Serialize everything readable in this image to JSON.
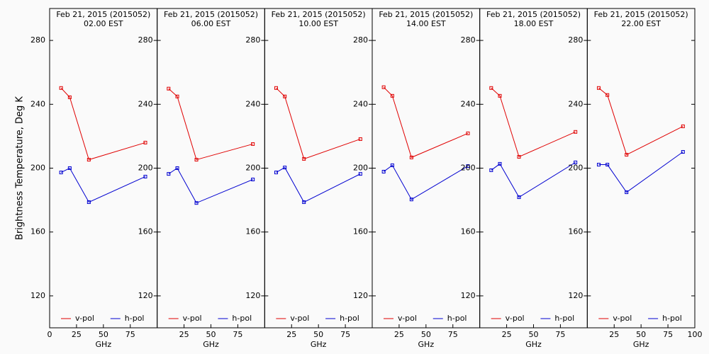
{
  "chart_data": [
    {
      "type": "line",
      "title": "Feb 21, 2015 (2015052)",
      "subtitle": "02.00 EST",
      "ylabel": "Brightness Temperature, Deg K",
      "xlabel": "GHz",
      "x": [
        10.65,
        18.7,
        36.5,
        89.0
      ],
      "xlim": [
        0,
        100
      ],
      "ylim": [
        100,
        300
      ],
      "xticks": [
        0,
        25,
        50,
        75
      ],
      "yticks": [
        120,
        160,
        200,
        240,
        280
      ],
      "series": [
        {
          "name": "v-pol",
          "color": "#e00000",
          "values": [
            250.2,
            244.4,
            205.3,
            216.0
          ]
        },
        {
          "name": "h-pol",
          "color": "#0000d0",
          "values": [
            197.3,
            200.0,
            178.7,
            194.7
          ]
        }
      ]
    },
    {
      "type": "line",
      "title": "Feb 21, 2015 (2015052)",
      "subtitle": "06.00 EST",
      "xlabel": "GHz",
      "x": [
        10.65,
        18.7,
        36.5,
        89.0
      ],
      "xlim": [
        0,
        100
      ],
      "ylim": [
        100,
        300
      ],
      "xticks": [
        25,
        50,
        75
      ],
      "yticks": [
        120,
        160,
        200,
        240,
        280
      ],
      "series": [
        {
          "name": "v-pol",
          "color": "#e00000",
          "values": [
            249.8,
            244.9,
            205.3,
            215.1
          ]
        },
        {
          "name": "h-pol",
          "color": "#0000d0",
          "values": [
            196.4,
            200.0,
            178.2,
            192.9
          ]
        }
      ]
    },
    {
      "type": "line",
      "title": "Feb 21, 2015 (2015052)",
      "subtitle": "10.00 EST",
      "xlabel": "GHz",
      "x": [
        10.65,
        18.7,
        36.5,
        89.0
      ],
      "xlim": [
        0,
        100
      ],
      "ylim": [
        100,
        300
      ],
      "xticks": [
        25,
        50,
        75
      ],
      "yticks": [
        120,
        160,
        200,
        240,
        280
      ],
      "series": [
        {
          "name": "v-pol",
          "color": "#e00000",
          "values": [
            250.2,
            244.9,
            205.8,
            218.2
          ]
        },
        {
          "name": "h-pol",
          "color": "#0000d0",
          "values": [
            197.3,
            200.4,
            178.7,
            196.4
          ]
        }
      ]
    },
    {
      "type": "line",
      "title": "Feb 21, 2015 (2015052)",
      "subtitle": "14.00 EST",
      "xlabel": "GHz",
      "x": [
        10.65,
        18.7,
        36.5,
        89.0
      ],
      "xlim": [
        0,
        100
      ],
      "ylim": [
        100,
        300
      ],
      "xticks": [
        25,
        50,
        75
      ],
      "yticks": [
        120,
        160,
        200,
        240,
        280
      ],
      "series": [
        {
          "name": "v-pol",
          "color": "#e00000",
          "values": [
            250.7,
            245.3,
            206.7,
            221.8
          ]
        },
        {
          "name": "h-pol",
          "color": "#0000d0",
          "values": [
            197.8,
            201.8,
            180.4,
            201.3
          ]
        }
      ]
    },
    {
      "type": "line",
      "title": "Feb 21, 2015 (2015052)",
      "subtitle": "18.00 EST",
      "xlabel": "GHz",
      "x": [
        10.65,
        18.7,
        36.5,
        89.0
      ],
      "xlim": [
        0,
        100
      ],
      "ylim": [
        100,
        300
      ],
      "xticks": [
        25,
        50,
        75
      ],
      "yticks": [
        120,
        160,
        200,
        240,
        280
      ],
      "series": [
        {
          "name": "v-pol",
          "color": "#e00000",
          "values": [
            250.2,
            245.3,
            207.1,
            222.7
          ]
        },
        {
          "name": "h-pol",
          "color": "#0000d0",
          "values": [
            198.7,
            202.7,
            181.8,
            203.6
          ]
        }
      ]
    },
    {
      "type": "line",
      "title": "Feb 21, 2015 (2015052)",
      "subtitle": "22.00 EST",
      "xlabel": "GHz",
      "x": [
        10.65,
        18.7,
        36.5,
        89.0
      ],
      "xlim": [
        0,
        100
      ],
      "ylim": [
        100,
        300
      ],
      "xticks": [
        25,
        50,
        75,
        100
      ],
      "yticks": [
        120,
        160,
        200,
        240,
        280
      ],
      "series": [
        {
          "name": "v-pol",
          "color": "#e00000",
          "values": [
            250.2,
            245.8,
            208.4,
            226.2
          ]
        },
        {
          "name": "h-pol",
          "color": "#0000d0",
          "values": [
            202.2,
            202.2,
            184.9,
            210.2
          ]
        }
      ]
    }
  ]
}
